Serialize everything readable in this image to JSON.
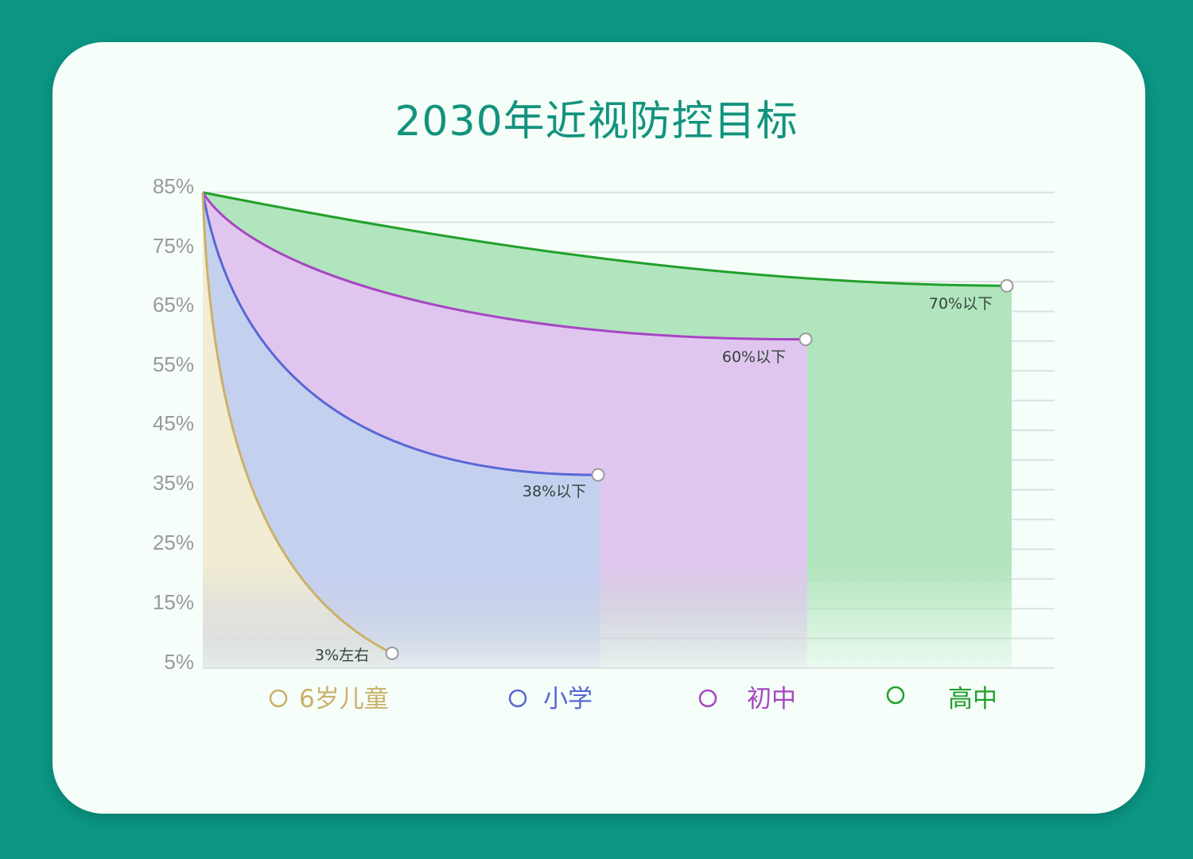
{
  "chart_data": {
    "type": "area",
    "title": "2030年近视防控目标",
    "y_ticks": [
      "85%",
      "75%",
      "65%",
      "55%",
      "45%",
      "35%",
      "25%",
      "15%",
      "5%"
    ],
    "ylim": [
      5,
      85
    ],
    "grid": true,
    "start_value": 85,
    "series": [
      {
        "name": "高中",
        "end_value": 69.3,
        "label": "70%以下",
        "color": "#21a02a",
        "fill": "#b1e5bd"
      },
      {
        "name": "初中",
        "end_value": 60.3,
        "label": "60%以下",
        "color": "#a746c4",
        "fill": "#e0c6ee"
      },
      {
        "name": "小学",
        "end_value": 37.5,
        "label": "38%以下",
        "color": "#5867d5",
        "fill": "#c3d1ef"
      },
      {
        "name": "6岁儿童",
        "end_value": 7.5,
        "label": "3%左右",
        "color": "#cbb06a",
        "fill": "#f2ecd2"
      }
    ],
    "legend_position": "bottom"
  }
}
